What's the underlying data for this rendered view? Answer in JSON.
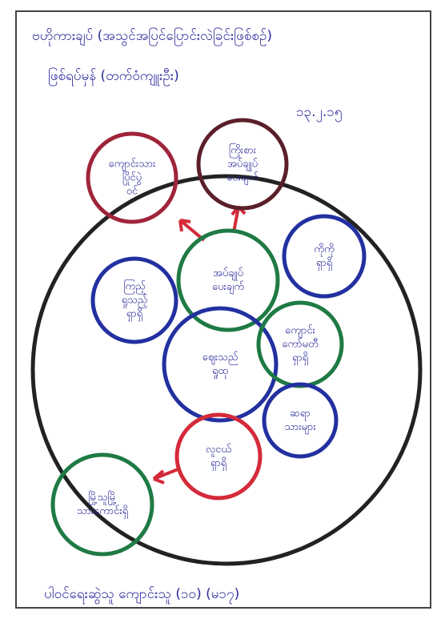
{
  "header": {
    "title": "ဗဟိုကားချပ် (အသွင်အပြင်ပြောင်းလဲခြင်းဖြစ်စဉ်)",
    "subtitle": "ဖြစ်ရပ်မှန် (တက်ဝံကျူးဦး)",
    "date": "၁၃.၂.၁၅"
  },
  "nodes": [
    {
      "lines": [
        "ကျောင်းသား",
        "ပြိုင်ပွဲ",
        "ဝင်"
      ]
    },
    {
      "lines": [
        "ကြိုးစား",
        "အပ်ချုပ်",
        "ပေးချက်"
      ]
    },
    {
      "lines": [
        "အပ်ချုပ်",
        "ပေးချက်"
      ]
    },
    {
      "lines": [
        "ကိုကို",
        "ရှာရှိ"
      ]
    },
    {
      "lines": [
        "ကြည့်",
        "ရှုသည့်",
        "ရှာရှိ"
      ]
    },
    {
      "lines": [
        "ဈေးသည်",
        "ရှုထု"
      ]
    },
    {
      "lines": [
        "ကျောင်း",
        "ကော်မတီ",
        "ရှာရှိ"
      ]
    },
    {
      "lines": [
        "ဆရာ",
        "သားများ"
      ]
    },
    {
      "lines": [
        "လူငယ်",
        "ရှာရှိ"
      ]
    },
    {
      "lines": [
        "မြို့သူမြို့",
        "သားကောင်းရှိ"
      ]
    }
  ],
  "footer": {
    "text": "ပါဝင်ရေးဆွဲသူ ကျောင်းသူ (၁၀) (မ၁၇)"
  }
}
